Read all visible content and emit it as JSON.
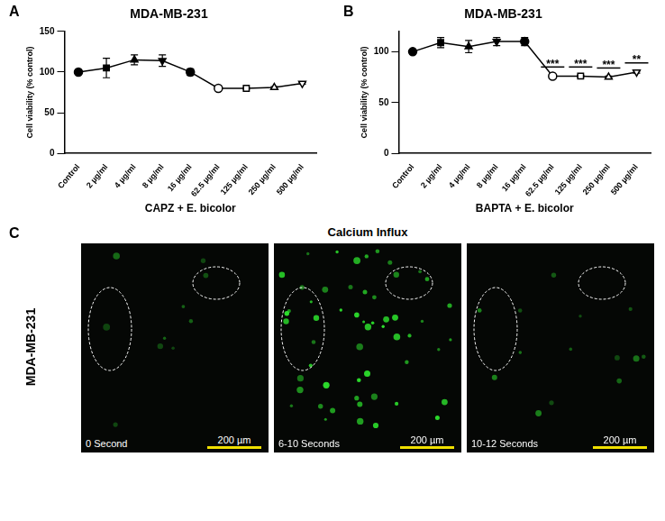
{
  "chart_data": [
    {
      "panel": "A",
      "type": "line",
      "title": "MDA-MB-231",
      "x_label": "CAPZ + E. bicolor",
      "y_label": "Cell viability (% control)",
      "categories": [
        "Control",
        "2 µg/ml",
        "4 µg/ml",
        "8 µg/ml",
        "16 µg/ml",
        "62.5 µg/ml",
        "125 µg/ml",
        "250 µg/ml",
        "500 µg/ml"
      ],
      "values": [
        100,
        105,
        115,
        114,
        100,
        80,
        80,
        81,
        86
      ],
      "errors": [
        0,
        12,
        6,
        7,
        4,
        1,
        1,
        1,
        1
      ],
      "color": "#000000",
      "ylim": [
        0,
        150
      ],
      "yticks": [
        0,
        50,
        100,
        150
      ],
      "grid": false
    },
    {
      "panel": "B",
      "type": "line",
      "title": "MDA-MB-231",
      "x_label": "BAPTA + E. bicolor",
      "y_label": "Cell viability (% control)",
      "categories": [
        "Control",
        "2 µg/ml",
        "4 µg/ml",
        "8 µg/ml",
        "16 µg/ml",
        "62.5 µg/ml",
        "125 µg/ml",
        "250 µg/ml",
        "500 µg/ml"
      ],
      "values": [
        100,
        109,
        105,
        110,
        110,
        76,
        76,
        75,
        80
      ],
      "errors": [
        0,
        5,
        6,
        4,
        4,
        1,
        1,
        1,
        1
      ],
      "annotations": [
        {
          "category": "62.5 µg/ml",
          "text": "***"
        },
        {
          "category": "125 µg/ml",
          "text": "***"
        },
        {
          "category": "250 µg/ml",
          "text": "***"
        },
        {
          "category": "500 µg/ml",
          "text": "**"
        }
      ],
      "color": "#000000",
      "ylim": [
        0,
        120
      ],
      "yticks": [
        0,
        50,
        100
      ],
      "grid": false
    }
  ],
  "panel_c": {
    "panel": "C",
    "title": "Calcium Influx",
    "row_label": "MDA-MB-231",
    "images": [
      {
        "time": "0 Second",
        "scale_bar": "200 µm"
      },
      {
        "time": "6-10 Seconds",
        "scale_bar": "200 µm"
      },
      {
        "time": "10-12 Seconds",
        "scale_bar": "200 µm"
      }
    ]
  }
}
